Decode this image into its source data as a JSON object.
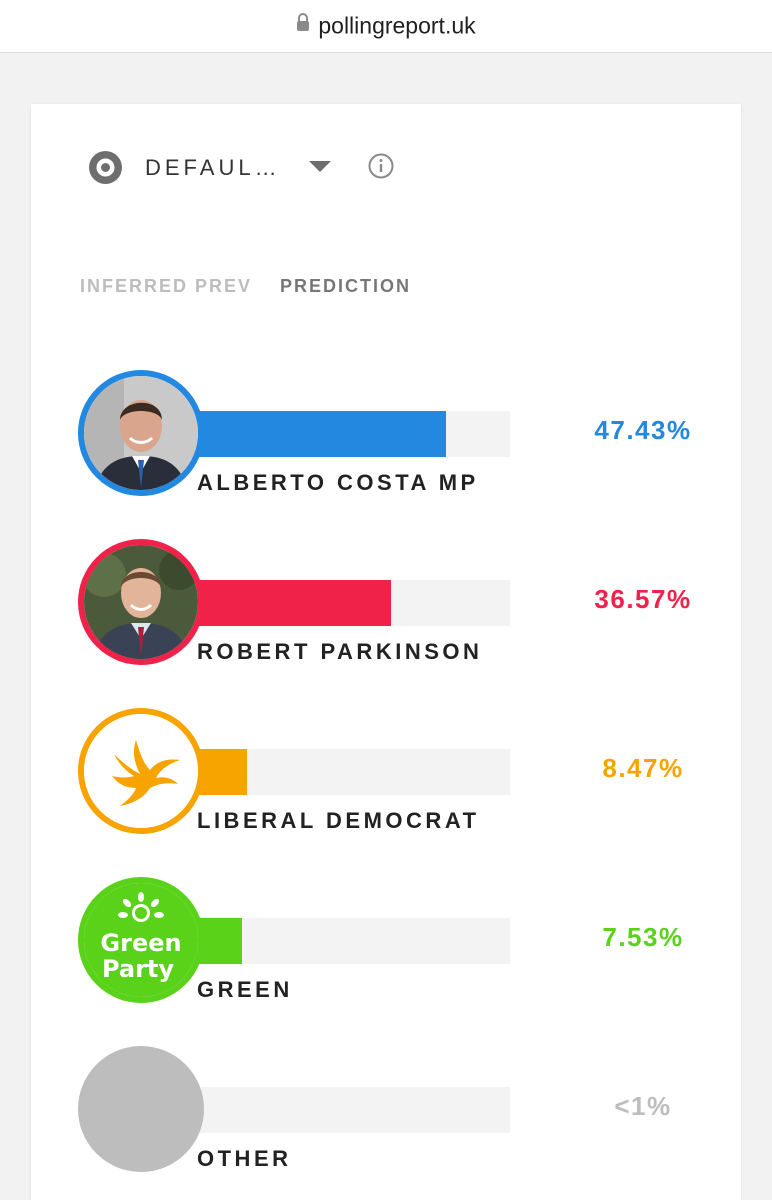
{
  "browser": {
    "url": "pollingreport.uk"
  },
  "selector": {
    "label": "DEFAUL…"
  },
  "tabs": [
    {
      "label": "INFERRED PREV",
      "active": false
    },
    {
      "label": "PREDICTION",
      "active": true
    }
  ],
  "candidates": [
    {
      "name": "ALBERTO COSTA MP",
      "percent": "47.43%",
      "share": 0.4743,
      "color": "#2288e0",
      "avatar": "candidate-photo"
    },
    {
      "name": "ROBERT PARKINSON",
      "percent": "36.57%",
      "share": 0.3657,
      "color": "#f0224a",
      "avatar": "candidate-photo"
    },
    {
      "name": "LIBERAL DEMOCRAT",
      "percent": "8.47%",
      "share": 0.0847,
      "color": "#f7a400",
      "avatar": "libdem-bird-logo"
    },
    {
      "name": "GREEN",
      "percent": "7.53%",
      "share": 0.0753,
      "color": "#5bd21a",
      "avatar": "green-party-logo",
      "logo_text": [
        "Green",
        "Party"
      ]
    },
    {
      "name": "OTHER",
      "percent": "<1%",
      "share": 0.0,
      "color": "#bdbdbd",
      "avatar": "grey-circle"
    }
  ]
}
